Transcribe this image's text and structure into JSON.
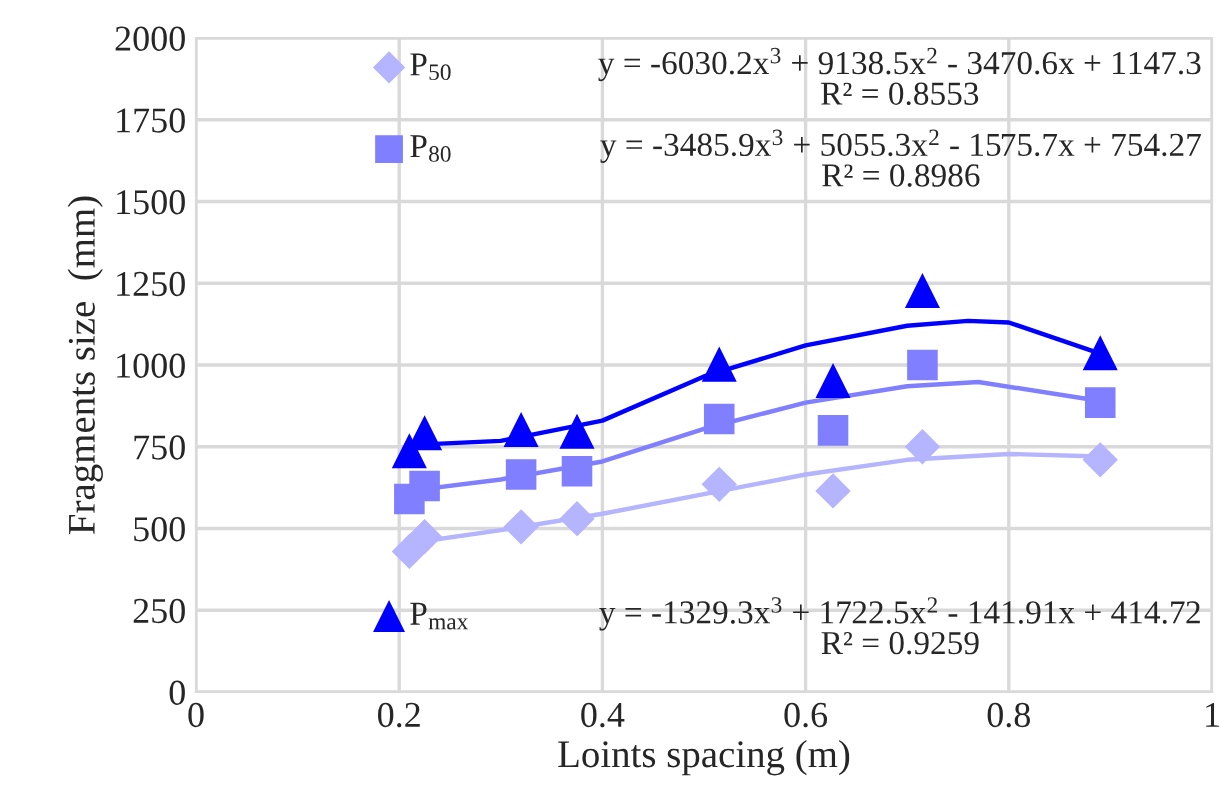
{
  "chart_data": {
    "type": "scatter",
    "xlabel": "Loints spacing (m)",
    "ylabel": "Fragments size  (mm)",
    "xlim": [
      0,
      1
    ],
    "xticks": [
      0,
      0.2,
      0.4,
      0.6,
      0.8,
      1
    ],
    "ylim": [
      0,
      2000
    ],
    "yticks": [
      0,
      250,
      500,
      750,
      1000,
      1250,
      1500,
      1750,
      2000
    ],
    "grid": true,
    "legend": "left",
    "x": [
      0.21,
      0.225,
      0.32,
      0.375,
      0.515,
      0.627,
      0.715,
      0.89
    ],
    "series": [
      {
        "name": "P$_{50}$",
        "color": "#b4b4ff",
        "marker": "diamond",
        "values": [
          430,
          475,
          505,
          530,
          635,
          615,
          750,
          710
        ]
      },
      {
        "name": "P$_{80}$",
        "color": "#7f7fff",
        "marker": "square",
        "values": [
          590,
          630,
          665,
          675,
          835,
          800,
          1000,
          885
        ]
      },
      {
        "name": "P$_{max}$",
        "color": "#0000ff",
        "marker": "triangle",
        "values": [
          735,
          790,
          800,
          795,
          1000,
          950,
          1225,
          1035
        ]
      },
      {
        "type": "line",
        "color": "#b4b4ff",
        "x": [
          0.21,
          0.3,
          0.4,
          0.5,
          0.6,
          0.7,
          0.8,
          0.89
        ],
        "values": [
          455,
          495,
          545,
          605,
          665,
          710,
          728,
          720
        ]
      },
      {
        "type": "line",
        "color": "#7f7fff",
        "x": [
          0.21,
          0.3,
          0.4,
          0.5,
          0.6,
          0.7,
          0.77,
          0.89
        ],
        "values": [
          615,
          650,
          705,
          805,
          885,
          935,
          948,
          890
        ]
      },
      {
        "type": "line",
        "color": "#0000ff",
        "x": [
          0.21,
          0.23,
          0.3,
          0.4,
          0.5,
          0.6,
          0.7,
          0.76,
          0.8,
          0.89
        ],
        "values": [
          765,
          758,
          768,
          830,
          965,
          1060,
          1120,
          1135,
          1130,
          1035
        ]
      }
    ],
    "annotations": [
      "y = -6030.2x$^{3}$ + 9138.5x$^{2}$ - 3470.6x + 1147.3\nR² = 0.8553",
      "y = -3485.9x$^{3}$ + 5055.3x$^{2}$ - 1575.7x + 754.27\nR² = 0.8986",
      "y = -1329.3x$^{3}$ + 1722.5x$^{2}$ - 141.91x + 414.72\nR² = 0.9259"
    ]
  }
}
